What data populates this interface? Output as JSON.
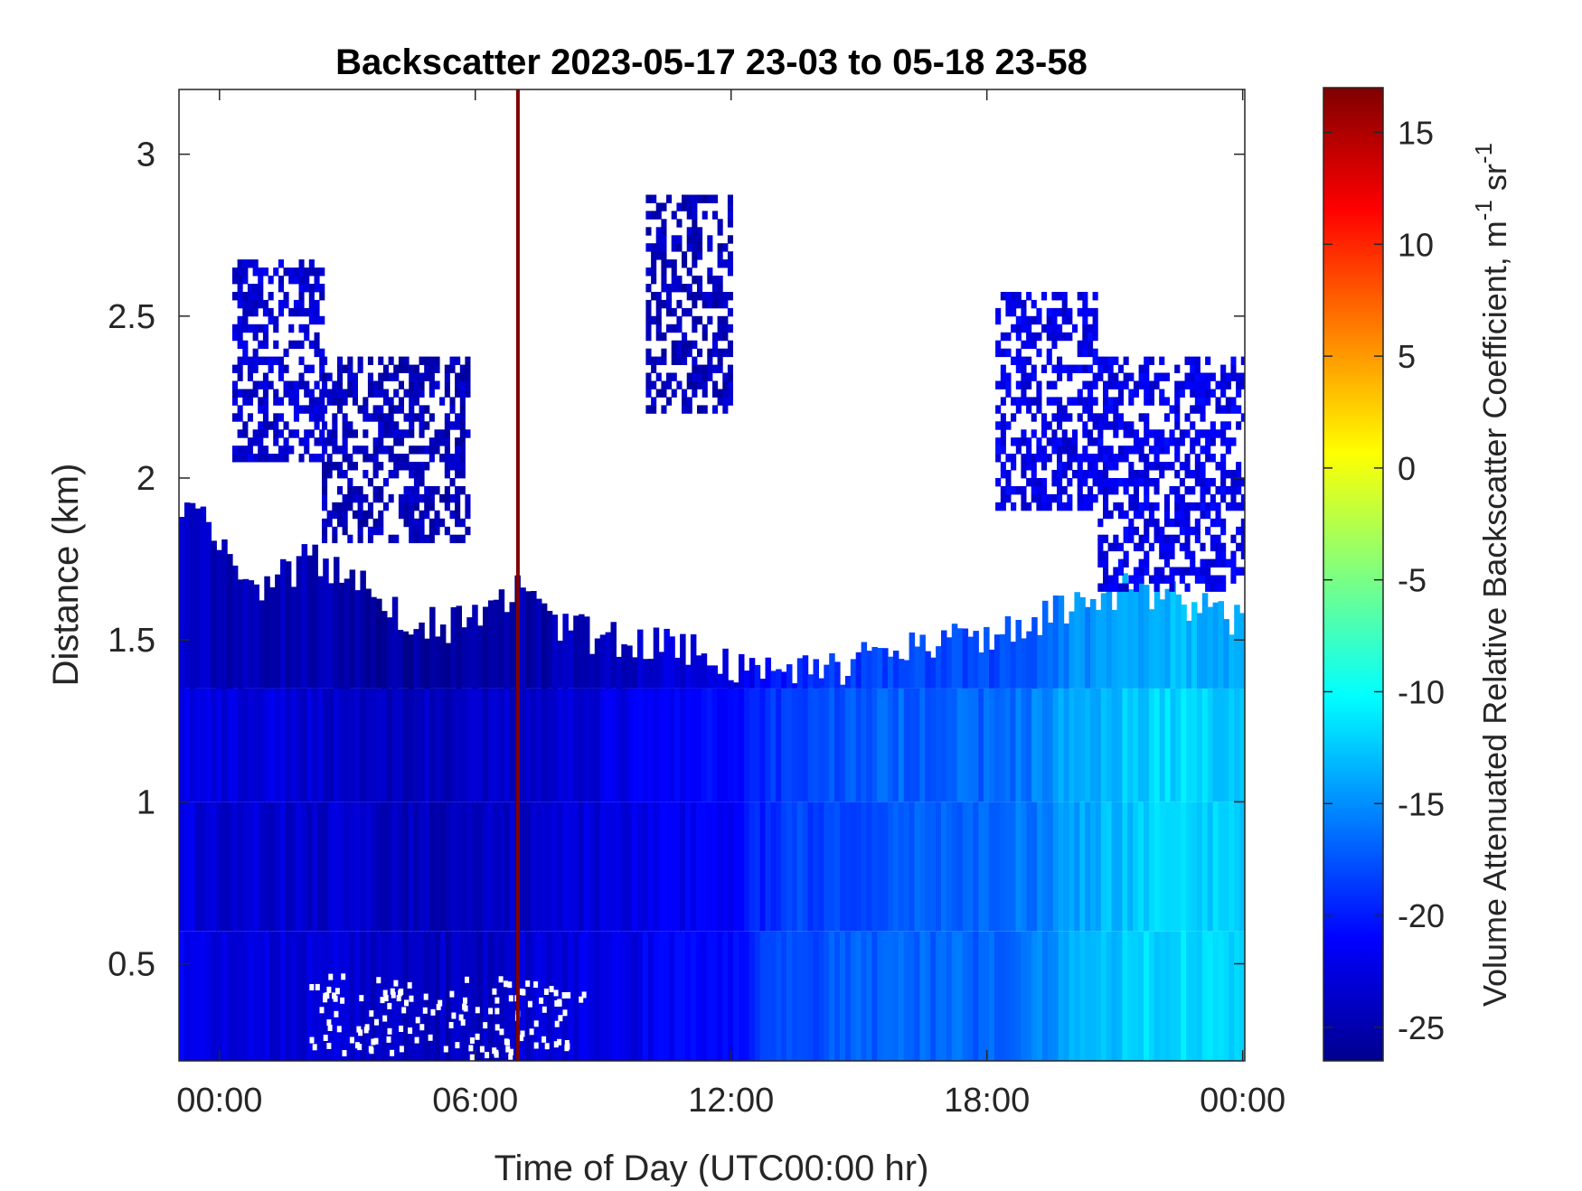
{
  "chart_data": {
    "type": "heatmap",
    "title": "Backscatter 2023-05-17 23-03 to 05-18 23-58",
    "xlabel": "Time of Day (UTC00:00 hr)",
    "ylabel": "Distance (km)",
    "xlim": [
      -0.95,
      24.05
    ],
    "ylim": [
      0.2,
      3.2
    ],
    "x_tick_values": [
      0,
      6,
      12,
      18,
      24
    ],
    "x_tick_labels": [
      "00:00",
      "06:00",
      "12:00",
      "18:00",
      "00:00"
    ],
    "y_ticks": [
      0.5,
      1,
      1.5,
      2,
      2.5,
      3
    ],
    "y_tick_labels": [
      "0.5",
      "1",
      "1.5",
      "2",
      "2.5",
      "3"
    ],
    "colorbar": {
      "label": "Volume Attenuated Relative Backscatter Coefficient, m",
      "unit_exp1": "-1",
      "unit_mid": " sr",
      "unit_exp2": "-1",
      "clim": [
        -26.5,
        17
      ],
      "ticks": [
        15,
        10,
        5,
        0,
        -5,
        -10,
        -15,
        -20,
        -25
      ],
      "tick_labels": [
        "15",
        "10",
        "5",
        "0",
        "-5",
        "-10",
        "-15",
        "-20",
        "-25"
      ],
      "colormap": "jet"
    },
    "annotations": [
      {
        "type": "vertical-line",
        "x": 7.0,
        "color": "#800000"
      }
    ],
    "boundary_layer_top": {
      "x": [
        -0.95,
        0,
        1,
        2,
        3,
        4,
        5,
        6,
        7,
        8,
        9,
        10,
        11,
        12,
        13,
        14,
        15,
        16,
        17,
        18,
        19,
        20,
        21,
        22,
        23,
        24.05
      ],
      "y": [
        1.95,
        1.8,
        1.65,
        1.75,
        1.7,
        1.6,
        1.55,
        1.55,
        1.65,
        1.55,
        1.5,
        1.5,
        1.48,
        1.42,
        1.4,
        1.4,
        1.43,
        1.48,
        1.5,
        1.52,
        1.55,
        1.6,
        1.65,
        1.65,
        1.6,
        1.55
      ]
    },
    "upper_layer_regions": [
      {
        "x": [
          0.3,
          2.4
        ],
        "y": [
          2.05,
          2.65
        ],
        "value": -23
      },
      {
        "x": [
          2.4,
          5.8
        ],
        "y": [
          1.8,
          2.35
        ],
        "value": -24
      },
      {
        "x": [
          10.0,
          12.0
        ],
        "y": [
          2.2,
          2.85
        ],
        "value": -24
      },
      {
        "x": [
          18.2,
          20.6
        ],
        "y": [
          1.9,
          2.55
        ],
        "value": -22
      },
      {
        "x": [
          20.6,
          24.05
        ],
        "y": [
          1.65,
          2.35
        ],
        "value": -22
      }
    ],
    "intensity_profile": {
      "x": [
        -0.95,
        0,
        2,
        4,
        6,
        8,
        10,
        12,
        13,
        14,
        16,
        18,
        19,
        20,
        21,
        22,
        23,
        24.05
      ],
      "value": [
        -22,
        -23,
        -23,
        -24,
        -24,
        -23,
        -22,
        -21,
        -19,
        -18,
        -17,
        -17,
        -16,
        -14,
        -13,
        -12,
        -12,
        -13
      ]
    }
  }
}
